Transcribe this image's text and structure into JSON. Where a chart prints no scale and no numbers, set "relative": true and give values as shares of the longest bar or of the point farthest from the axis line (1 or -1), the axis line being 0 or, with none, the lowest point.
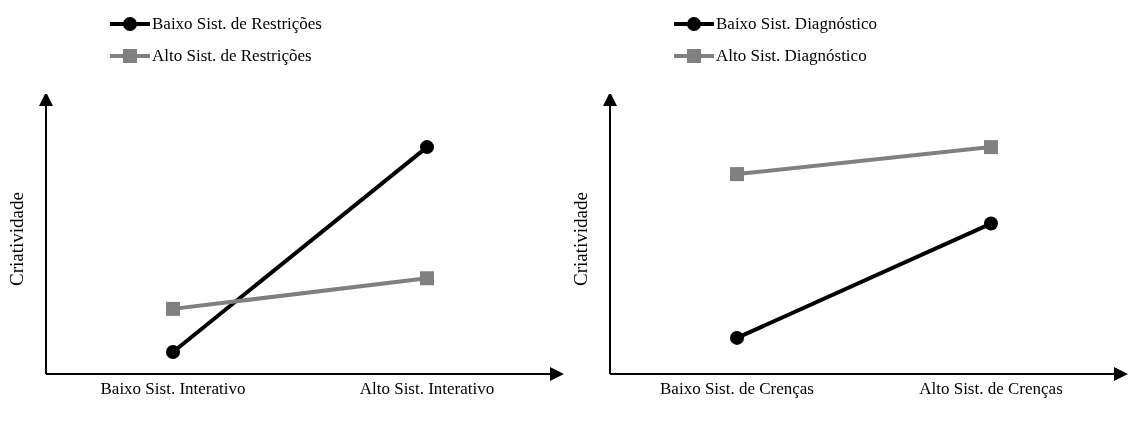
{
  "chart_data": [
    {
      "type": "line",
      "relative": true,
      "ylabel": "Criatividade",
      "categories": [
        "Baixo Sist. Interativo",
        "Alto Sist. Interativo"
      ],
      "legend": "top left",
      "line_style": "solid",
      "series": [
        {
          "name": "Baixo Sist. de Restrições",
          "color": "#000000",
          "marker": "circle",
          "values": [
            0.097,
            1
          ]
        },
        {
          "name": "Alto Sist. de Restrições",
          "color": "#808080",
          "marker": "square",
          "values": [
            0.287,
            0.422
          ]
        }
      ]
    },
    {
      "type": "line",
      "relative": true,
      "ylabel": "Criatividade",
      "categories": [
        "Baixo Sist. de Crenças",
        "Alto Sist. de Crenças"
      ],
      "legend": "top left",
      "line_style": "solid",
      "series": [
        {
          "name": "Baixo Sist. Diagnóstico",
          "color": "#000000",
          "marker": "circle",
          "values": [
            0.159,
            0.663
          ]
        },
        {
          "name": "Alto Sist. Diagnóstico",
          "color": "#808080",
          "marker": "square",
          "values": [
            0.881,
            1
          ]
        }
      ]
    }
  ]
}
